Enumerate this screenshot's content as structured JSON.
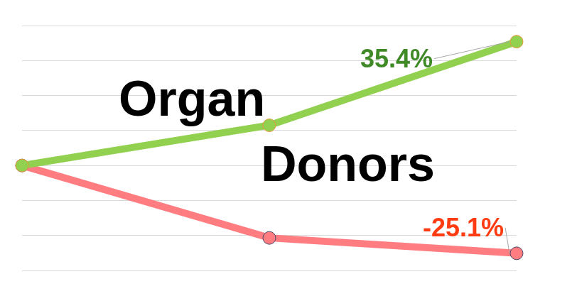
{
  "chart_data": {
    "type": "line",
    "categories": [
      null,
      null,
      null
    ],
    "series": [
      {
        "color": "#92d050",
        "values": [
          0,
          11.5,
          35.4
        ],
        "value_labels": [
          null,
          null,
          "35.4%"
        ]
      },
      {
        "color": "#ff7c80",
        "values": [
          0,
          -20.7,
          -25.1
        ],
        "value_labels": [
          null,
          null,
          "-25.1%"
        ]
      }
    ],
    "ylim": [
      -30,
      40
    ],
    "yticks": [
      -30,
      -20,
      -10,
      0,
      10,
      20,
      30,
      40
    ],
    "grid": true,
    "tick_labels": false,
    "data_labels": true,
    "marker": "circle",
    "annotations": [
      "Organ",
      "Donors"
    ]
  }
}
